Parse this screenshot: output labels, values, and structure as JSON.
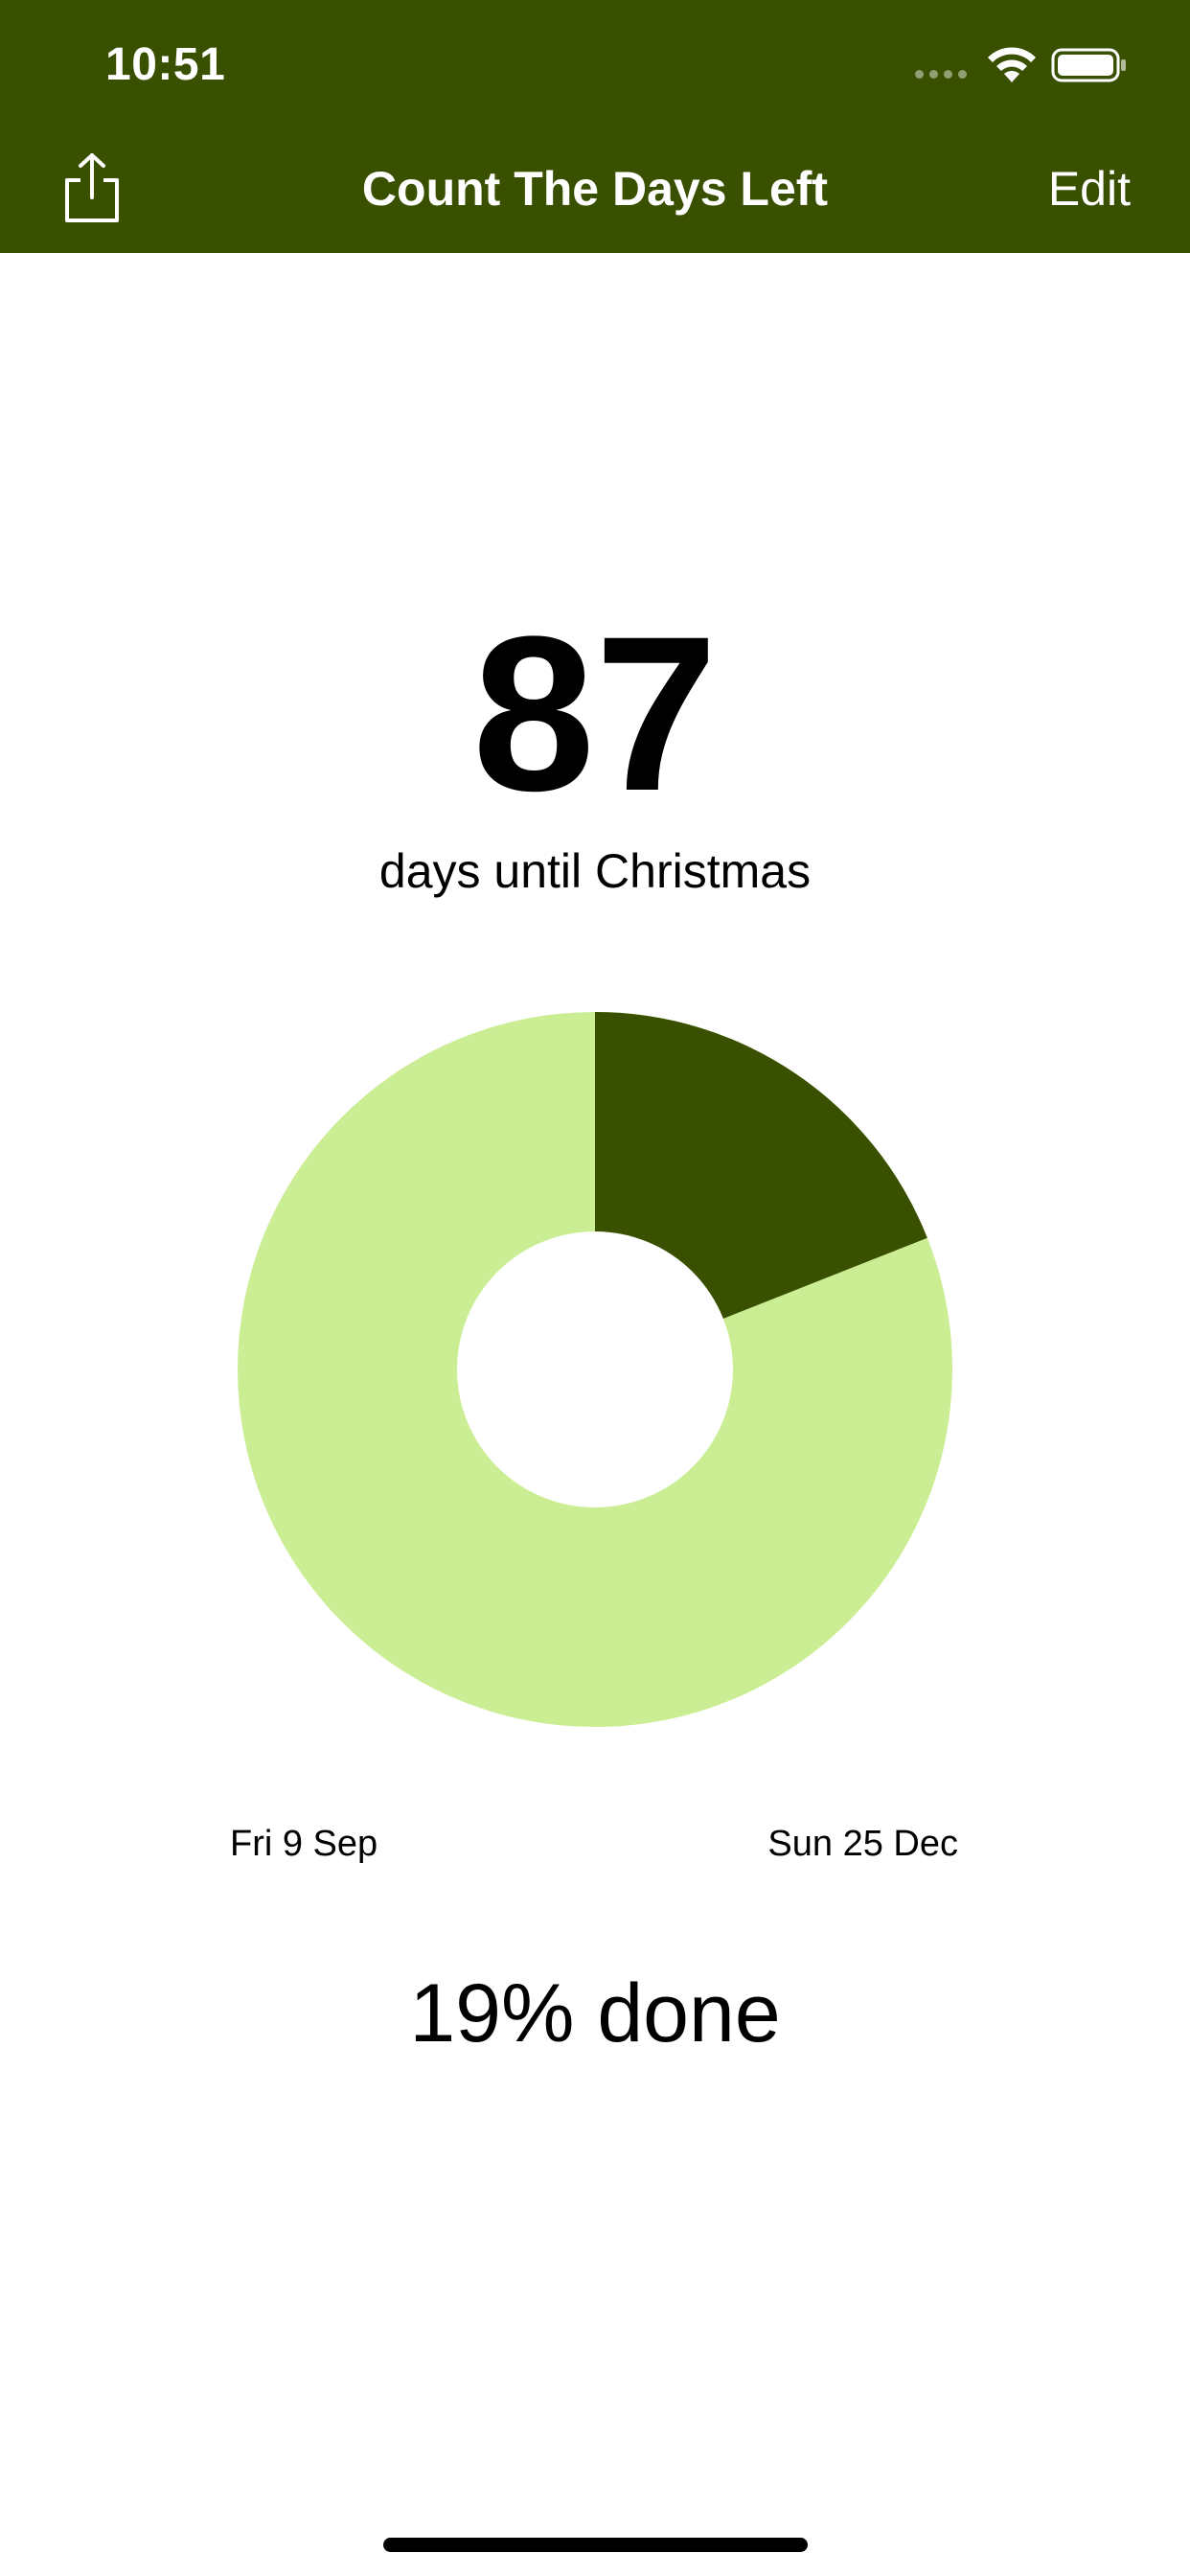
{
  "status_bar": {
    "time": "10:51"
  },
  "nav": {
    "title": "Count The Days Left",
    "edit_label": "Edit",
    "share_icon": "share-icon"
  },
  "countdown": {
    "days": "87",
    "subtitle": "days until Christmas",
    "start_date": "Fri 9 Sep",
    "end_date": "Sun 25 Dec",
    "percent_label": "19% done",
    "fraction_done": 0.19
  },
  "colors": {
    "bar": "#3a5001",
    "done": "#3a5001",
    "remaining": "#cbed93",
    "background": "#ffffff"
  }
}
